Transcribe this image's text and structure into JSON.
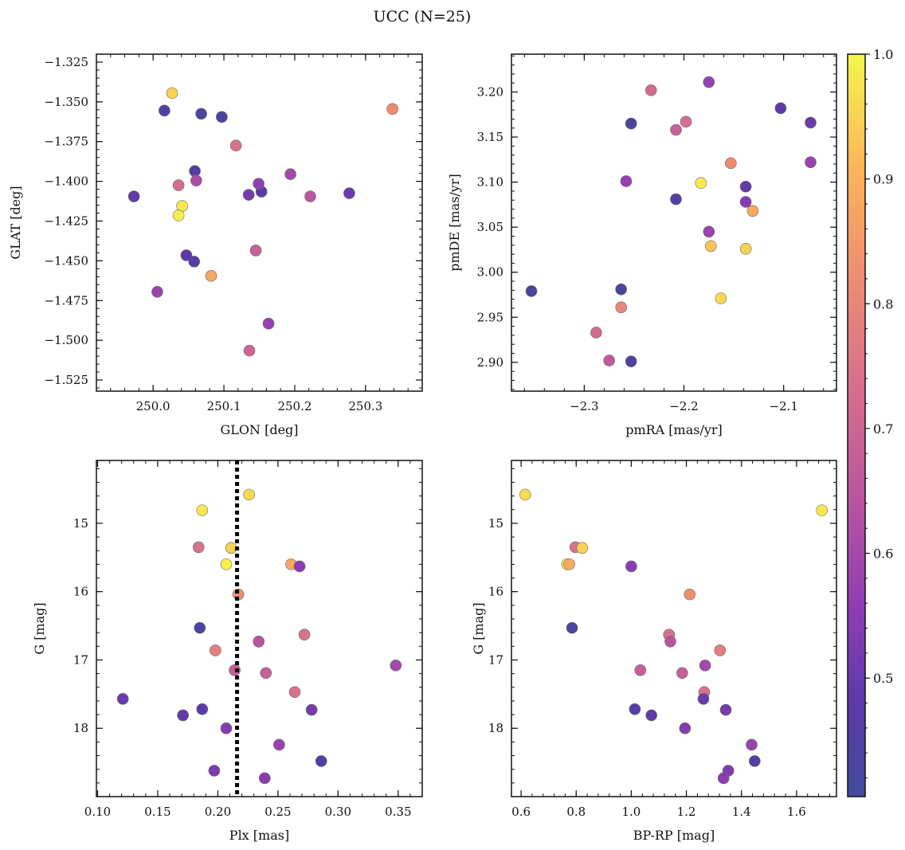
{
  "figure": {
    "title": "UCC (N=25)"
  },
  "colorbar": {
    "cmap": "plasma",
    "range": [
      0.405,
      1.0
    ],
    "ticks": [
      0.5,
      0.6,
      0.7,
      0.8,
      0.9,
      1.0
    ],
    "tick_labels": [
      "0.5",
      "0.6",
      "0.7",
      "0.8",
      "0.9",
      "1.0"
    ]
  },
  "chart_data": [
    {
      "type": "scatter",
      "id": "glon-glat",
      "xlabel": "GLON [deg]",
      "ylabel": "GLAT [deg]",
      "xlim": [
        249.92,
        250.38
      ],
      "ylim": [
        -1.532,
        -1.32
      ],
      "xticks": [
        250.0,
        250.1,
        250.2,
        250.3
      ],
      "xtick_labels": [
        "250.0",
        "250.1",
        "250.2",
        "250.3"
      ],
      "yticks": [
        -1.525,
        -1.5,
        -1.475,
        -1.45,
        -1.425,
        -1.4,
        -1.375,
        -1.35,
        -1.325
      ],
      "ytick_labels": [
        "−1.525",
        "−1.500",
        "−1.475",
        "−1.450",
        "−1.425",
        "−1.400",
        "−1.375",
        "−1.350",
        "−1.325"
      ],
      "x": [
        250.163,
        250.136,
        250.068,
        250.097,
        250.016,
        250.059,
        249.973,
        250.006,
        250.153,
        250.194,
        250.145,
        250.135,
        250.277,
        250.058,
        250.047,
        250.027,
        250.222,
        250.041,
        250.036,
        250.149,
        250.036,
        250.061,
        250.117,
        250.082,
        250.338
      ],
      "y": [
        -1.4895,
        -1.5065,
        -1.3575,
        -1.3595,
        -1.3555,
        -1.3935,
        -1.4095,
        -1.4695,
        -1.4065,
        -1.3955,
        -1.4435,
        -1.4085,
        -1.4075,
        -1.4505,
        -1.4465,
        -1.3445,
        -1.4095,
        -1.4155,
        -1.4215,
        -1.4015,
        -1.4025,
        -1.3995,
        -1.3775,
        -1.4595,
        -1.3545
      ],
      "prob": [
        0.57,
        0.7,
        0.44,
        0.44,
        0.45,
        0.46,
        0.49,
        0.58,
        0.48,
        0.6,
        0.68,
        0.52,
        0.5,
        0.47,
        0.48,
        0.95,
        0.65,
        0.98,
        0.99,
        0.56,
        0.73,
        0.61,
        0.74,
        0.88,
        0.82
      ]
    },
    {
      "type": "scatter",
      "id": "pmra-pmde",
      "xlabel": "pmRA [mas/yr]",
      "ylabel": "pmDE [mas/yr]",
      "xlim": [
        -2.373,
        -2.047
      ],
      "ylim": [
        2.868,
        3.242
      ],
      "xticks": [
        -2.3,
        -2.2,
        -2.1
      ],
      "xtick_labels": [
        "−2.3",
        "−2.2",
        "−2.1"
      ],
      "yticks": [
        2.9,
        2.95,
        3.0,
        3.05,
        3.1,
        3.15,
        3.2
      ],
      "ytick_labels": [
        "2.90",
        "2.95",
        "3.00",
        "3.05",
        "3.10",
        "3.15",
        "3.20"
      ],
      "x": [
        -2.353,
        -2.263,
        -2.253,
        -2.253,
        -2.208,
        -2.103,
        -2.073,
        -2.073,
        -2.138,
        -2.138,
        -2.175,
        -2.258,
        -2.175,
        -2.208,
        -2.275,
        -2.288,
        -2.233,
        -2.198,
        -2.263,
        -2.183,
        -2.153,
        -2.131,
        -2.138,
        -2.173,
        -2.163
      ],
      "y": [
        2.979,
        2.981,
        3.165,
        2.901,
        3.081,
        3.182,
        3.166,
        3.122,
        3.095,
        3.078,
        3.211,
        3.101,
        3.045,
        3.158,
        2.902,
        2.933,
        3.202,
        3.167,
        2.961,
        3.099,
        3.121,
        3.068,
        3.026,
        3.029,
        2.971
      ],
      "prob": [
        0.44,
        0.44,
        0.44,
        0.45,
        0.46,
        0.48,
        0.5,
        0.58,
        0.49,
        0.54,
        0.57,
        0.57,
        0.58,
        0.68,
        0.66,
        0.72,
        0.72,
        0.73,
        0.8,
        0.98,
        0.82,
        0.88,
        0.95,
        0.93,
        0.96
      ]
    },
    {
      "type": "scatter",
      "id": "plx-g",
      "xlabel": "Plx [mas]",
      "ylabel": "G [mag]",
      "xlim": [
        0.099,
        0.37
      ],
      "ylim": [
        19.0,
        14.08
      ],
      "y_inverted": true,
      "xticks": [
        0.1,
        0.15,
        0.2,
        0.25,
        0.3,
        0.35
      ],
      "xtick_labels": [
        "0.10",
        "0.15",
        "0.20",
        "0.25",
        "0.30",
        "0.35"
      ],
      "yticks": [
        15,
        16,
        17,
        18
      ],
      "ytick_labels": [
        "15",
        "16",
        "17",
        "18"
      ],
      "vline": {
        "x": 0.216,
        "style": "dotted"
      },
      "x": [
        0.226,
        0.187,
        0.184,
        0.211,
        0.207,
        0.261,
        0.268,
        0.217,
        0.185,
        0.272,
        0.234,
        0.198,
        0.348,
        0.214,
        0.24,
        0.264,
        0.121,
        0.278,
        0.187,
        0.171,
        0.207,
        0.251,
        0.286,
        0.197,
        0.239
      ],
      "y": [
        14.58,
        14.81,
        15.35,
        15.36,
        15.6,
        15.6,
        15.63,
        16.04,
        16.53,
        16.63,
        16.73,
        16.86,
        17.08,
        17.15,
        17.19,
        17.47,
        17.57,
        17.73,
        17.72,
        17.81,
        18.0,
        18.24,
        18.48,
        18.62,
        18.73
      ],
      "prob": [
        0.96,
        0.98,
        0.74,
        0.95,
        0.99,
        0.88,
        0.55,
        0.82,
        0.44,
        0.74,
        0.64,
        0.78,
        0.6,
        0.68,
        0.68,
        0.74,
        0.5,
        0.52,
        0.47,
        0.49,
        0.54,
        0.58,
        0.46,
        0.53,
        0.55
      ]
    },
    {
      "type": "scatter",
      "id": "bprp-g",
      "xlabel": "BP-RP [mag]",
      "ylabel": "G [mag]",
      "xlim": [
        0.565,
        1.745
      ],
      "ylim": [
        19.0,
        14.08
      ],
      "y_inverted": true,
      "xticks": [
        0.6,
        0.8,
        1.0,
        1.2,
        1.4,
        1.6
      ],
      "xtick_labels": [
        "0.6",
        "0.8",
        "1.0",
        "1.2",
        "1.4",
        "1.6"
      ],
      "yticks": [
        15,
        16,
        17,
        18
      ],
      "ytick_labels": [
        "15",
        "16",
        "17",
        "18"
      ],
      "x": [
        0.615,
        1.692,
        0.797,
        0.822,
        0.767,
        0.775,
        1.0,
        1.212,
        0.785,
        1.137,
        1.142,
        1.322,
        1.268,
        1.033,
        1.185,
        1.265,
        1.262,
        1.343,
        1.013,
        1.073,
        1.195,
        1.437,
        1.448,
        1.352,
        1.335
      ],
      "y": [
        14.58,
        14.81,
        15.35,
        15.36,
        15.6,
        15.6,
        15.63,
        16.04,
        16.53,
        16.63,
        16.73,
        16.86,
        17.08,
        17.15,
        17.19,
        17.47,
        17.57,
        17.73,
        17.72,
        17.81,
        18.0,
        18.24,
        18.48,
        18.62,
        18.73
      ],
      "prob": [
        0.96,
        0.98,
        0.74,
        0.95,
        0.99,
        0.88,
        0.55,
        0.82,
        0.44,
        0.74,
        0.64,
        0.78,
        0.6,
        0.68,
        0.68,
        0.74,
        0.5,
        0.52,
        0.47,
        0.49,
        0.54,
        0.58,
        0.46,
        0.53,
        0.55
      ]
    }
  ]
}
